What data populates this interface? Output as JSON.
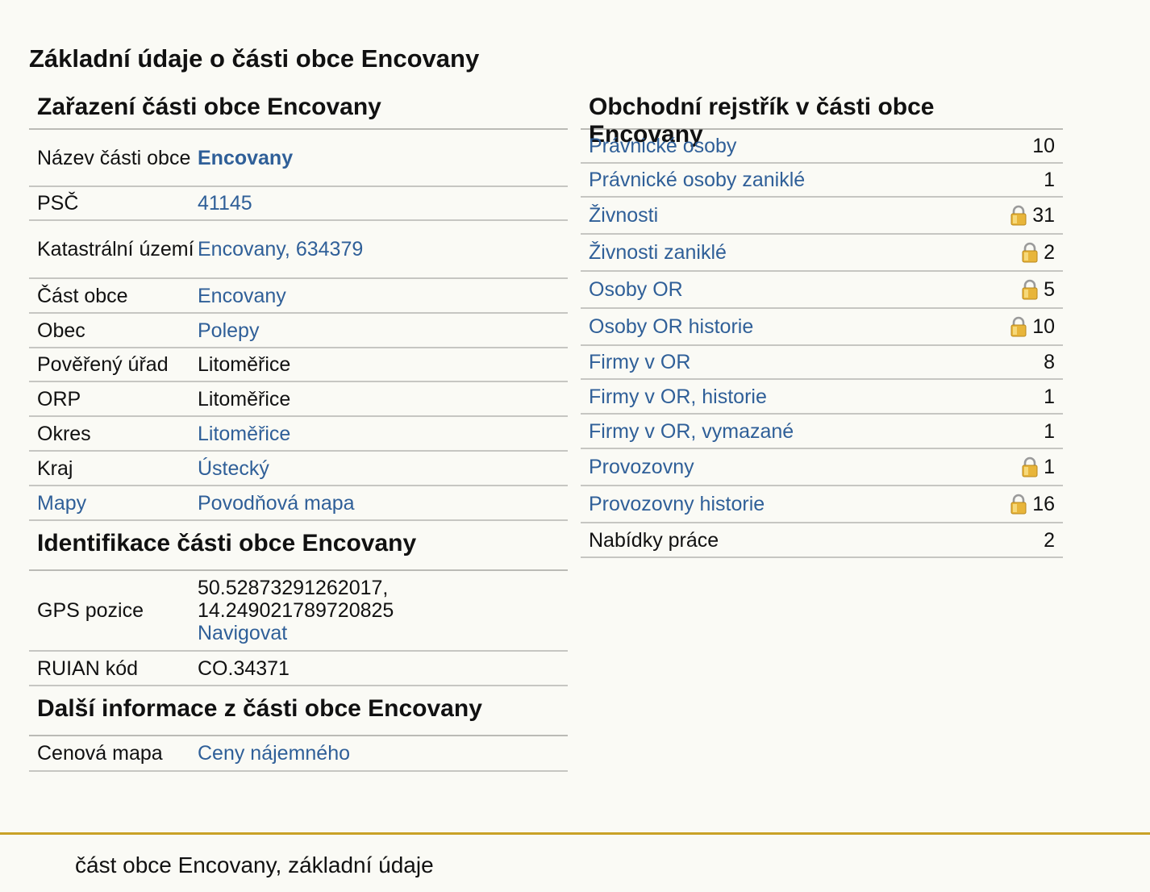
{
  "page_title": "Základní údaje o části obce Encovany",
  "left": {
    "zarazeni_title": "Zařazení části obce Encovany",
    "zarazeni_rows": [
      {
        "label": "Název části obce",
        "value": "Encovany"
      },
      {
        "label": "PSČ",
        "value": "41145"
      },
      {
        "label": "Katastrální území",
        "value": "Encovany, 634379"
      },
      {
        "label": "Část obce",
        "value": "Encovany"
      },
      {
        "label": "Obec",
        "value": "Polepy"
      },
      {
        "label": "Pověřený úřad",
        "value": "Litoměřice"
      },
      {
        "label": "ORP",
        "value": "Litoměřice"
      },
      {
        "label": "Okres",
        "value": "Litoměřice"
      },
      {
        "label": "Kraj",
        "value": "Ústecký"
      },
      {
        "label": "Mapy",
        "value": "Povodňová mapa"
      }
    ],
    "identifikace_title": "Identifikace části obce Encovany",
    "gps": {
      "label": "GPS pozice",
      "coords_line1": "50.52873291262017,",
      "coords_line2": "14.249021789720825",
      "navigate_label": "Navigovat"
    },
    "ruian": {
      "label": "RUIAN kód",
      "value": "CO.34371"
    },
    "dalsi_title": "Další informace z části obce Encovany",
    "cenova": {
      "label": "Cenová mapa",
      "value": "Ceny nájemného"
    }
  },
  "right": {
    "title": "Obchodní rejstřík v části obce Encovany",
    "rows": [
      {
        "label": "Právnické osoby",
        "value": "10",
        "locked": false,
        "link": true
      },
      {
        "label": "Právnické osoby zaniklé",
        "value": "1",
        "locked": false,
        "link": true
      },
      {
        "label": "Živnosti",
        "value": "31",
        "locked": true,
        "link": true
      },
      {
        "label": "Živnosti zaniklé",
        "value": "2",
        "locked": true,
        "link": true
      },
      {
        "label": "Osoby OR",
        "value": "5",
        "locked": true,
        "link": true
      },
      {
        "label": "Osoby OR historie",
        "value": "10",
        "locked": true,
        "link": true
      },
      {
        "label": "Firmy v OR",
        "value": "8",
        "locked": false,
        "link": true
      },
      {
        "label": "Firmy v OR, historie",
        "value": "1",
        "locked": false,
        "link": true
      },
      {
        "label": "Firmy v OR, vymazané",
        "value": "1",
        "locked": false,
        "link": true
      },
      {
        "label": "Provozovny",
        "value": "1",
        "locked": true,
        "link": true
      },
      {
        "label": "Provozovny historie",
        "value": "16",
        "locked": true,
        "link": true
      },
      {
        "label": "Nabídky práce",
        "value": "2",
        "locked": false,
        "link": false
      }
    ],
    "lock_icon": "padlock-icon"
  },
  "footer": {
    "text": "část obce Encovany, základní údaje"
  },
  "colors": {
    "link": "#2f5f98",
    "accent_line": "#c9a227",
    "background": "#fafaf5"
  }
}
